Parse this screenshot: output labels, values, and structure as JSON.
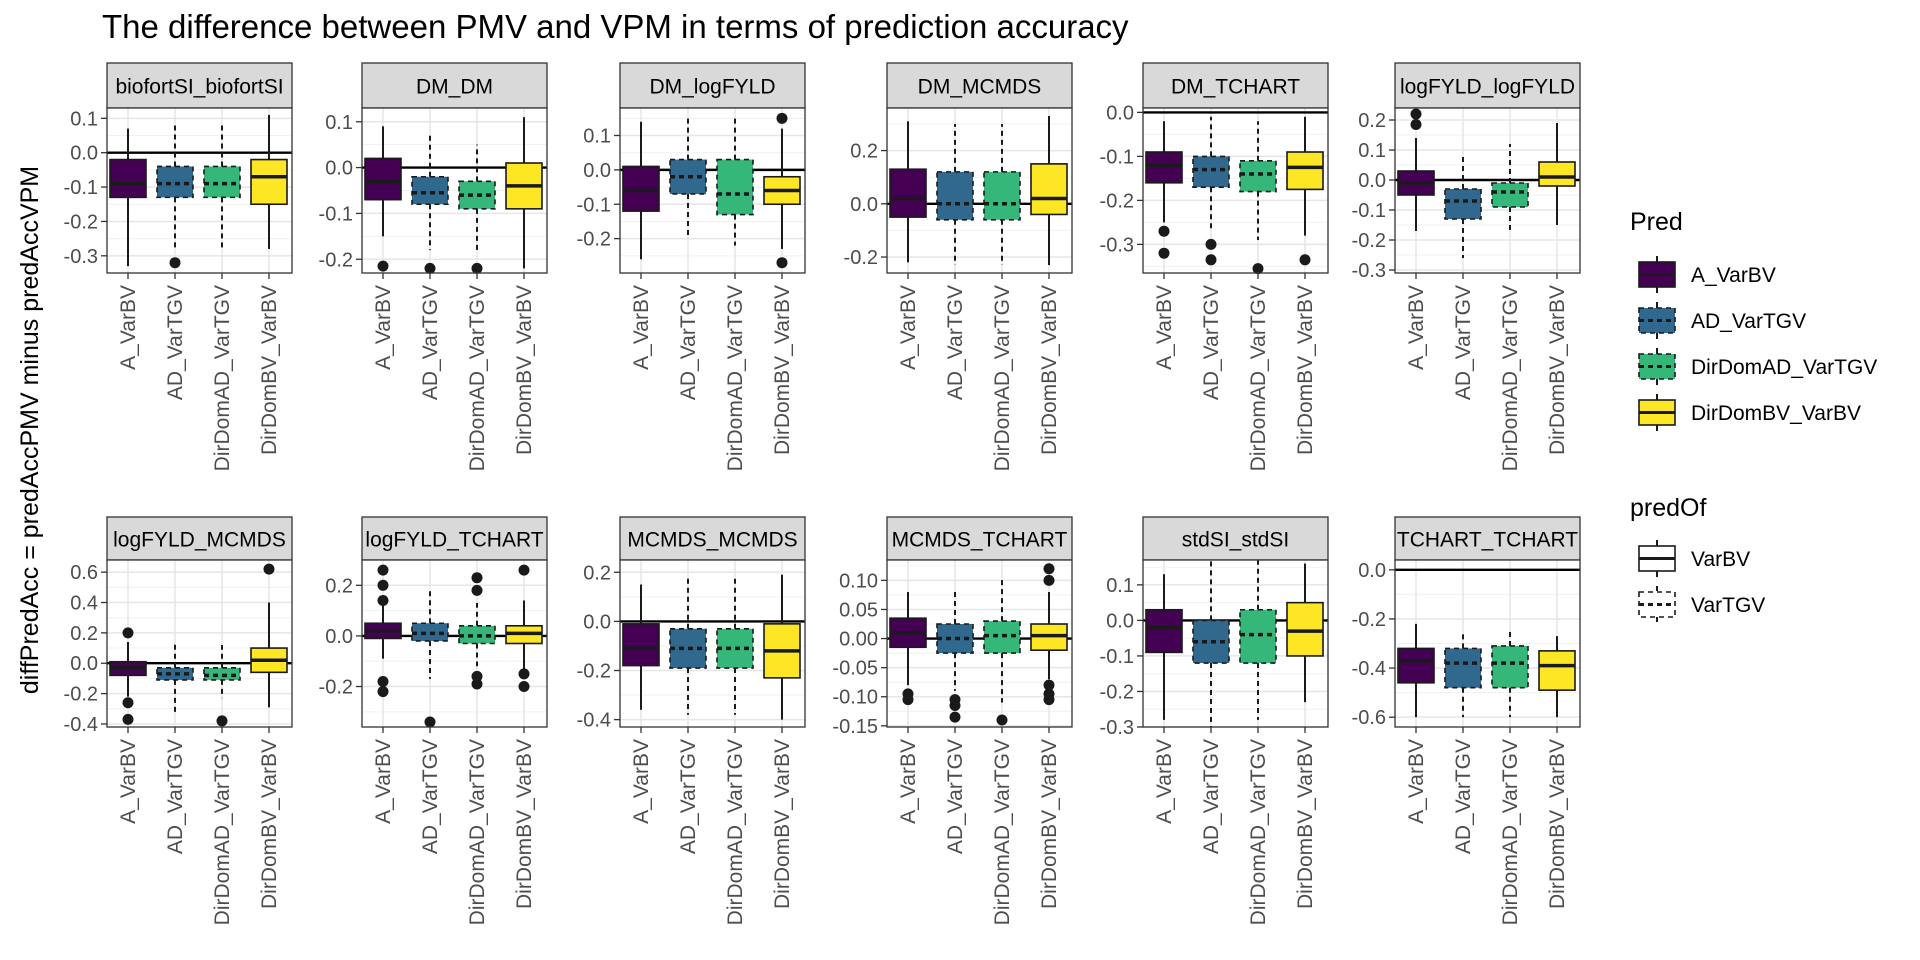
{
  "chart_data": {
    "type": "boxplot-facets",
    "title": "The difference between PMV and VPM in terms of prediction accuracy",
    "ylabel": "diffPredAcc = predAccPMV minus predAccVPM",
    "categories": [
      "A_VarBV",
      "AD_VarTGV",
      "DirDomAD_VarTGV",
      "DirDomBV_VarBV"
    ],
    "category_colors": [
      "#440154",
      "#31688E",
      "#35B779",
      "#FDE725"
    ],
    "category_linetypes": [
      "solid",
      "dashed",
      "dashed",
      "solid"
    ],
    "legend_pred": {
      "title": "Pred",
      "items": [
        "A_VarBV",
        "AD_VarTGV",
        "DirDomAD_VarTGV",
        "DirDomBV_VarBV"
      ],
      "colors": [
        "#440154",
        "#31688E",
        "#35B779",
        "#FDE725"
      ]
    },
    "legend_predof": {
      "title": "predOf",
      "items": [
        "VarBV",
        "VarTGV"
      ],
      "linetypes": [
        "solid",
        "dashed"
      ]
    },
    "legend_placement": "right",
    "grid": true,
    "panels": [
      {
        "strip": "biofortSI_biofortSI",
        "ylim": [
          -0.35,
          0.13
        ],
        "ticks": [
          0.1,
          0.0,
          -0.1,
          -0.2,
          -0.3
        ],
        "tick_labels": [
          "0.1",
          "0.0",
          "-0.1",
          "-0.2",
          "-0.3"
        ],
        "boxes": [
          {
            "q1": -0.13,
            "median": -0.09,
            "q3": -0.02,
            "lo": -0.33,
            "hi": 0.07,
            "out": []
          },
          {
            "q1": -0.13,
            "median": -0.09,
            "q3": -0.04,
            "lo": -0.28,
            "hi": 0.09,
            "out": [
              -0.32
            ]
          },
          {
            "q1": -0.13,
            "median": -0.09,
            "q3": -0.04,
            "lo": -0.28,
            "hi": 0.09,
            "out": []
          },
          {
            "q1": -0.15,
            "median": -0.07,
            "q3": -0.02,
            "lo": -0.28,
            "hi": 0.11,
            "out": []
          }
        ]
      },
      {
        "strip": "DM_DM",
        "ylim": [
          -0.23,
          0.13
        ],
        "ticks": [
          0.1,
          0.0,
          -0.1,
          -0.2
        ],
        "tick_labels": [
          "0.1",
          "0.0",
          "-0.1",
          "-0.2"
        ],
        "boxes": [
          {
            "q1": -0.07,
            "median": -0.03,
            "q3": 0.02,
            "lo": -0.15,
            "hi": 0.09,
            "out": [
              -0.215
            ]
          },
          {
            "q1": -0.08,
            "median": -0.055,
            "q3": -0.02,
            "lo": -0.18,
            "hi": 0.07,
            "out": [
              -0.22
            ]
          },
          {
            "q1": -0.09,
            "median": -0.06,
            "q3": -0.03,
            "lo": -0.18,
            "hi": 0.05,
            "out": [
              -0.22
            ]
          },
          {
            "q1": -0.09,
            "median": -0.04,
            "q3": 0.01,
            "lo": -0.22,
            "hi": 0.11,
            "out": []
          }
        ]
      },
      {
        "strip": "DM_logFYLD",
        "ylim": [
          -0.3,
          0.18
        ],
        "ticks": [
          0.1,
          0.0,
          -0.1,
          -0.2
        ],
        "tick_labels": [
          "0.1",
          "0.0",
          "-0.1",
          "-0.2"
        ],
        "boxes": [
          {
            "q1": -0.12,
            "median": -0.06,
            "q3": 0.01,
            "lo": -0.26,
            "hi": 0.14,
            "out": []
          },
          {
            "q1": -0.07,
            "median": -0.02,
            "q3": 0.03,
            "lo": -0.2,
            "hi": 0.16,
            "out": []
          },
          {
            "q1": -0.13,
            "median": -0.07,
            "q3": 0.03,
            "lo": -0.22,
            "hi": 0.15,
            "out": []
          },
          {
            "q1": -0.1,
            "median": -0.06,
            "q3": -0.02,
            "lo": -0.23,
            "hi": 0.12,
            "out": [
              0.15,
              -0.27
            ]
          }
        ]
      },
      {
        "strip": "DM_MCMDS",
        "ylim": [
          -0.26,
          0.36
        ],
        "ticks": [
          0.2,
          0.0,
          -0.2
        ],
        "tick_labels": [
          "0.2",
          "0.0",
          "-0.2"
        ],
        "boxes": [
          {
            "q1": -0.05,
            "median": 0.02,
            "q3": 0.13,
            "lo": -0.22,
            "hi": 0.31,
            "out": []
          },
          {
            "q1": -0.06,
            "median": 0.0,
            "q3": 0.12,
            "lo": -0.23,
            "hi": 0.3,
            "out": []
          },
          {
            "q1": -0.06,
            "median": 0.0,
            "q3": 0.12,
            "lo": -0.23,
            "hi": 0.3,
            "out": []
          },
          {
            "q1": -0.04,
            "median": 0.02,
            "q3": 0.15,
            "lo": -0.23,
            "hi": 0.33,
            "out": []
          }
        ]
      },
      {
        "strip": "DM_TCHART",
        "ylim": [
          -0.365,
          0.01
        ],
        "ticks": [
          0.0,
          -0.1,
          -0.2,
          -0.3
        ],
        "tick_labels": [
          "0.0",
          "-0.1",
          "-0.2",
          "-0.3"
        ],
        "boxes": [
          {
            "q1": -0.16,
            "median": -0.12,
            "q3": -0.09,
            "lo": -0.25,
            "hi": -0.02,
            "out": [
              -0.27,
              -0.32
            ]
          },
          {
            "q1": -0.17,
            "median": -0.13,
            "q3": -0.1,
            "lo": -0.27,
            "hi": -0.01,
            "out": [
              -0.3,
              -0.335
            ]
          },
          {
            "q1": -0.18,
            "median": -0.14,
            "q3": -0.11,
            "lo": -0.29,
            "hi": -0.02,
            "out": [
              -0.355
            ]
          },
          {
            "q1": -0.175,
            "median": -0.125,
            "q3": -0.09,
            "lo": -0.28,
            "hi": -0.01,
            "out": [
              -0.335
            ]
          }
        ]
      },
      {
        "strip": "logFYLD_logFYLD",
        "ylim": [
          -0.31,
          0.24
        ],
        "ticks": [
          0.2,
          0.1,
          0.0,
          -0.1,
          -0.2,
          -0.3
        ],
        "tick_labels": [
          "0.2",
          "0.1",
          "0.0",
          "-0.1",
          "-0.2",
          "-0.3"
        ],
        "boxes": [
          {
            "q1": -0.05,
            "median": -0.01,
            "q3": 0.03,
            "lo": -0.17,
            "hi": 0.14,
            "out": [
              0.185,
              0.22
            ]
          },
          {
            "q1": -0.13,
            "median": -0.07,
            "q3": -0.03,
            "lo": -0.26,
            "hi": 0.08,
            "out": []
          },
          {
            "q1": -0.09,
            "median": -0.04,
            "q3": -0.01,
            "lo": -0.17,
            "hi": 0.12,
            "out": []
          },
          {
            "q1": -0.02,
            "median": 0.01,
            "q3": 0.06,
            "lo": -0.15,
            "hi": 0.19,
            "out": []
          }
        ]
      },
      {
        "strip": "logFYLD_MCMDS",
        "ylim": [
          -0.42,
          0.68
        ],
        "ticks": [
          0.6,
          0.4,
          0.2,
          0.0,
          -0.2,
          -0.4
        ],
        "tick_labels": [
          "0.6",
          "0.4",
          "0.2",
          "0.0",
          "-0.2",
          "-0.4"
        ],
        "boxes": [
          {
            "q1": -0.08,
            "median": -0.03,
            "q3": 0.01,
            "lo": -0.22,
            "hi": 0.14,
            "out": [
              0.2,
              -0.26,
              -0.37
            ]
          },
          {
            "q1": -0.11,
            "median": -0.07,
            "q3": -0.03,
            "lo": -0.33,
            "hi": 0.14,
            "out": []
          },
          {
            "q1": -0.11,
            "median": -0.08,
            "q3": -0.03,
            "lo": -0.23,
            "hi": 0.12,
            "out": [
              -0.38
            ]
          },
          {
            "q1": -0.06,
            "median": 0.02,
            "q3": 0.1,
            "lo": -0.29,
            "hi": 0.4,
            "out": [
              0.62
            ]
          }
        ]
      },
      {
        "strip": "logFYLD_TCHART",
        "ylim": [
          -0.36,
          0.3
        ],
        "ticks": [
          0.2,
          0.0,
          -0.2
        ],
        "tick_labels": [
          "0.2",
          "0.0",
          "-0.2"
        ],
        "boxes": [
          {
            "q1": -0.01,
            "median": 0.02,
            "q3": 0.05,
            "lo": -0.09,
            "hi": 0.13,
            "out": [
              0.26,
              0.2,
              0.14,
              -0.18,
              -0.22
            ]
          },
          {
            "q1": -0.02,
            "median": 0.01,
            "q3": 0.05,
            "lo": -0.17,
            "hi": 0.18,
            "out": [
              -0.34
            ]
          },
          {
            "q1": -0.03,
            "median": 0.0,
            "q3": 0.04,
            "lo": -0.12,
            "hi": 0.13,
            "out": [
              0.23,
              0.18,
              -0.16,
              -0.19
            ]
          },
          {
            "q1": -0.03,
            "median": 0.01,
            "q3": 0.04,
            "lo": -0.13,
            "hi": 0.14,
            "out": [
              0.26,
              -0.15,
              -0.2
            ]
          }
        ]
      },
      {
        "strip": "MCMDS_MCMDS",
        "ylim": [
          -0.43,
          0.25
        ],
        "ticks": [
          0.2,
          0.0,
          -0.2,
          -0.4
        ],
        "tick_labels": [
          "0.2",
          "0.0",
          "-0.2",
          "-0.4"
        ],
        "boxes": [
          {
            "q1": -0.18,
            "median": -0.11,
            "q3": -0.01,
            "lo": -0.36,
            "hi": 0.15,
            "out": []
          },
          {
            "q1": -0.19,
            "median": -0.11,
            "q3": -0.03,
            "lo": -0.38,
            "hi": 0.19,
            "out": []
          },
          {
            "q1": -0.19,
            "median": -0.11,
            "q3": -0.03,
            "lo": -0.38,
            "hi": 0.19,
            "out": []
          },
          {
            "q1": -0.23,
            "median": -0.12,
            "q3": -0.01,
            "lo": -0.4,
            "hi": 0.19,
            "out": []
          }
        ]
      },
      {
        "strip": "MCMDS_TCHART",
        "ylim": [
          -0.152,
          0.135
        ],
        "ticks": [
          0.1,
          0.05,
          0.0,
          -0.05,
          -0.1,
          -0.15
        ],
        "tick_labels": [
          "0.10",
          "0.05",
          "0.00",
          "-0.05",
          "-0.10",
          "-0.15"
        ],
        "boxes": [
          {
            "q1": -0.015,
            "median": 0.01,
            "q3": 0.035,
            "lo": -0.08,
            "hi": 0.08,
            "out": [
              -0.095,
              -0.105
            ]
          },
          {
            "q1": -0.025,
            "median": 0.0,
            "q3": 0.025,
            "lo": -0.09,
            "hi": 0.085,
            "out": [
              -0.105,
              -0.115,
              -0.135
            ]
          },
          {
            "q1": -0.025,
            "median": 0.005,
            "q3": 0.03,
            "lo": -0.11,
            "hi": 0.105,
            "out": [
              -0.14
            ]
          },
          {
            "q1": -0.02,
            "median": 0.005,
            "q3": 0.025,
            "lo": -0.07,
            "hi": 0.08,
            "out": [
              0.12,
              0.1,
              -0.08,
              -0.095,
              -0.105
            ]
          }
        ]
      },
      {
        "strip": "stdSI_stdSI",
        "ylim": [
          -0.3,
          0.17
        ],
        "ticks": [
          0.1,
          0.0,
          -0.1,
          -0.2,
          -0.3
        ],
        "tick_labels": [
          "0.1",
          "0.0",
          "-0.1",
          "-0.2",
          "-0.3"
        ],
        "boxes": [
          {
            "q1": -0.09,
            "median": -0.02,
            "q3": 0.03,
            "lo": -0.28,
            "hi": 0.13,
            "out": []
          },
          {
            "q1": -0.12,
            "median": -0.06,
            "q3": 0.0,
            "lo": -0.3,
            "hi": 0.17,
            "out": []
          },
          {
            "q1": -0.12,
            "median": -0.04,
            "q3": 0.03,
            "lo": -0.28,
            "hi": 0.17,
            "out": []
          },
          {
            "q1": -0.1,
            "median": -0.03,
            "q3": 0.05,
            "lo": -0.23,
            "hi": 0.16,
            "out": []
          }
        ]
      },
      {
        "strip": "TCHART_TCHART",
        "ylim": [
          -0.64,
          0.04
        ],
        "ticks": [
          0.0,
          -0.2,
          -0.4,
          -0.6
        ],
        "tick_labels": [
          "0.0",
          "-0.2",
          "-0.4",
          "-0.6"
        ],
        "boxes": [
          {
            "q1": -0.46,
            "median": -0.37,
            "q3": -0.32,
            "lo": -0.6,
            "hi": -0.22,
            "out": []
          },
          {
            "q1": -0.48,
            "median": -0.38,
            "q3": -0.32,
            "lo": -0.6,
            "hi": -0.26,
            "out": []
          },
          {
            "q1": -0.48,
            "median": -0.38,
            "q3": -0.31,
            "lo": -0.6,
            "hi": -0.24,
            "out": []
          },
          {
            "q1": -0.49,
            "median": -0.39,
            "q3": -0.33,
            "lo": -0.6,
            "hi": -0.27,
            "out": []
          }
        ]
      }
    ]
  }
}
